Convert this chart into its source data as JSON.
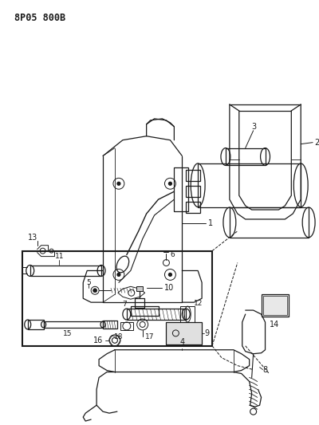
{
  "title": "8P05 800B",
  "bg_color": "#ffffff",
  "line_color": "#1a1a1a",
  "fig_width": 4.0,
  "fig_height": 5.33,
  "dpi": 100
}
